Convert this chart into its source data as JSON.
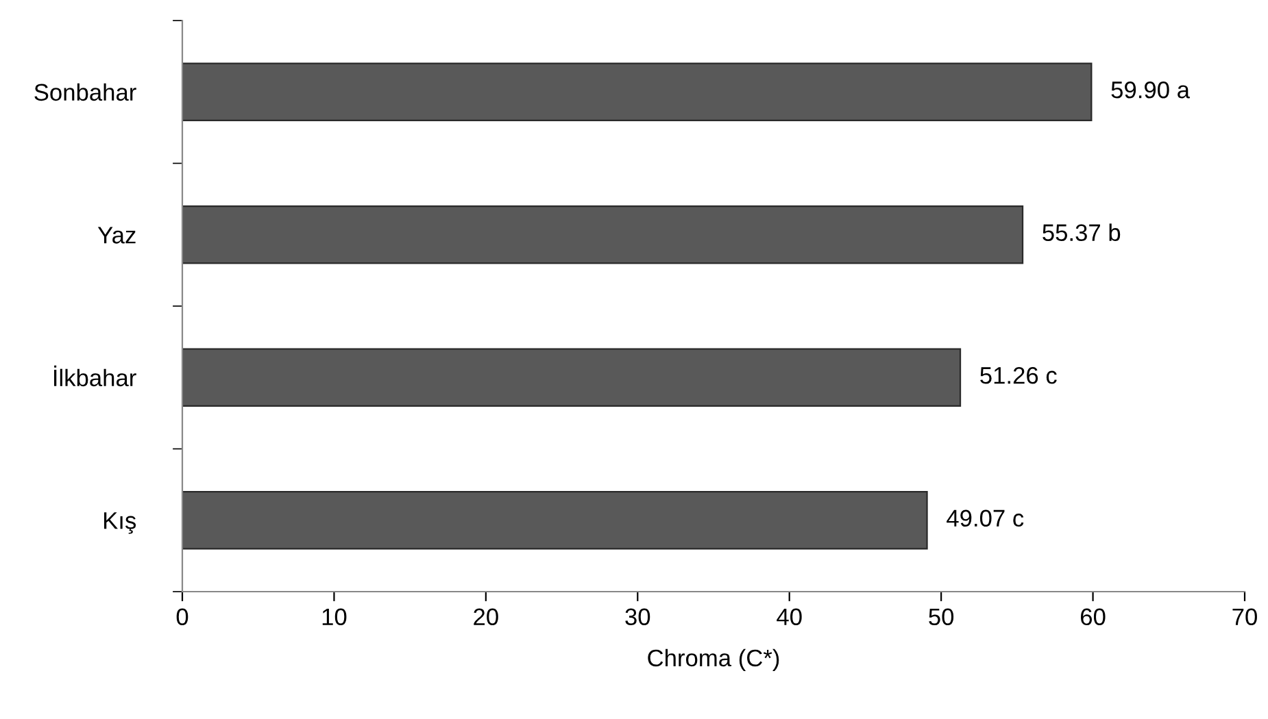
{
  "chart_data": {
    "type": "bar",
    "orientation": "horizontal",
    "xlabel": "Chroma (C*)",
    "categories": [
      "Sonbahar",
      "Yaz",
      "İlkbahar",
      "Kış"
    ],
    "values": [
      59.9,
      55.37,
      51.26,
      49.07
    ],
    "value_labels": [
      "59.90 a",
      "55.37 b",
      "51.26 c",
      "49.07 c"
    ],
    "color": "#595959",
    "xlim": [
      0,
      70
    ],
    "xticks": [
      0,
      10,
      20,
      30,
      40,
      50,
      60,
      70
    ],
    "grid": false
  }
}
